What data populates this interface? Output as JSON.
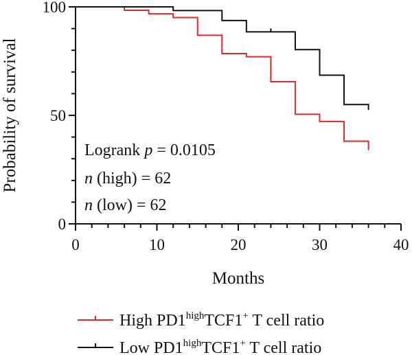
{
  "chart_data": {
    "type": "line",
    "subtype": "kaplan-meier step curve",
    "title": "",
    "xlabel": "Months",
    "ylabel": "Probability of survival",
    "xlim": [
      0,
      40
    ],
    "ylim": [
      0,
      100
    ],
    "x_ticks": [
      0,
      10,
      20,
      30,
      40
    ],
    "y_ticks": [
      0,
      50,
      100
    ],
    "grid": false,
    "legend_position": "bottom",
    "series": [
      {
        "name_parts": {
          "pre": "High PD1",
          "sup1": "high",
          "mid": "TCF1",
          "sup2": "+",
          "post": " T cell ratio"
        },
        "color": "#e8262a",
        "steps": [
          {
            "x": 0,
            "y": 100
          },
          {
            "x": 6,
            "y": 98.4
          },
          {
            "x": 9,
            "y": 96.8
          },
          {
            "x": 12,
            "y": 95.1
          },
          {
            "x": 15,
            "y": 86.9
          },
          {
            "x": 18,
            "y": 78.5
          },
          {
            "x": 21,
            "y": 77.0
          },
          {
            "x": 24,
            "y": 65.5
          },
          {
            "x": 27,
            "y": 50.5
          },
          {
            "x": 30,
            "y": 47.2
          },
          {
            "x": 33,
            "y": 38.1
          },
          {
            "x": 36,
            "y": 34.0
          }
        ],
        "end_x": 36
      },
      {
        "name_parts": {
          "pre": "Low PD1",
          "sup1": "high",
          "mid": "TCF1",
          "sup2": "+",
          "post": " T cell ratio"
        },
        "color": "#111111",
        "steps": [
          {
            "x": 0,
            "y": 100
          },
          {
            "x": 12,
            "y": 98.3
          },
          {
            "x": 18,
            "y": 93.7
          },
          {
            "x": 21,
            "y": 88.5
          },
          {
            "x": 27,
            "y": 80.3
          },
          {
            "x": 30,
            "y": 68.5
          },
          {
            "x": 33,
            "y": 55.0
          },
          {
            "x": 36,
            "y": 52.5
          }
        ],
        "censored": [
          {
            "x": 24,
            "y": 88.5
          }
        ],
        "end_x": 36
      }
    ],
    "annotations": {
      "logrank": {
        "prefix": "Logrank ",
        "p_symbol": "p",
        "rest": " = 0.0105"
      },
      "n_high": {
        "n_symbol": "n",
        "rest": " (high) = 62"
      },
      "n_low": {
        "n_symbol": "n",
        "rest": " (low) = 62"
      }
    }
  }
}
